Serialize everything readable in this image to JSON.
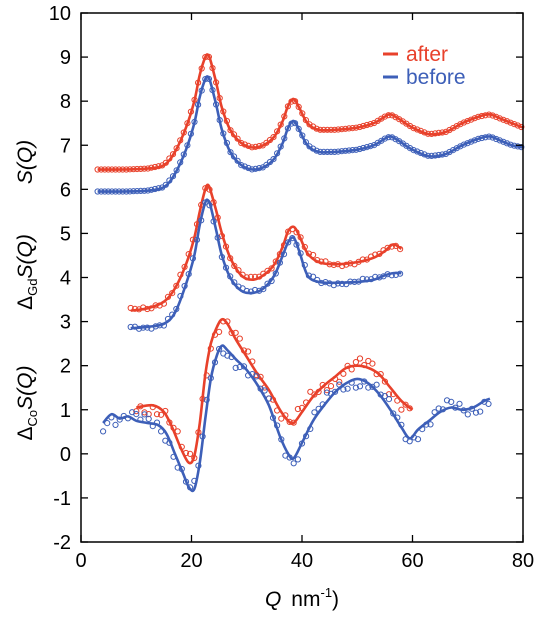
{
  "colors": {
    "after": "#e8412b",
    "before": "#3d5fb8",
    "axis": "#000000"
  },
  "chart_data": {
    "type": "line",
    "xlabel": {
      "var": "Q",
      "unit": "nm",
      "exp": "-1"
    },
    "ylabels": [
      {
        "pre": "",
        "sub": "",
        "var": "S(Q)"
      },
      {
        "pre": "Δ",
        "sub": "Gd",
        "var": "S(Q)"
      },
      {
        "pre": "Δ",
        "sub": "Co",
        "var": "S(Q)"
      }
    ],
    "xlim": [
      0,
      80
    ],
    "ylim": [
      -2,
      10
    ],
    "xticks": [
      0,
      20,
      40,
      60,
      80
    ],
    "yticks": [
      -2,
      -1,
      0,
      1,
      2,
      3,
      4,
      5,
      6,
      7,
      8,
      9,
      10
    ],
    "legend": {
      "position": "top-right",
      "entries": [
        "after",
        "before"
      ]
    },
    "grid": false,
    "series": [
      {
        "name": "after",
        "panel": "S(Q)",
        "x": [
          3,
          8,
          12,
          15,
          17,
          19,
          20.5,
          21.5,
          22.5,
          23,
          23.5,
          24.5,
          25.5,
          27,
          29,
          31,
          33,
          35,
          36.5,
          37.5,
          38.5,
          39.5,
          41,
          43,
          46,
          50,
          53,
          55,
          56,
          57.5,
          60,
          63,
          66,
          69,
          72,
          74,
          76,
          78,
          80
        ],
        "y": [
          6.45,
          6.45,
          6.47,
          6.55,
          6.85,
          7.4,
          8.0,
          8.6,
          9.0,
          9.05,
          8.9,
          8.4,
          7.85,
          7.35,
          7.05,
          6.95,
          7.0,
          7.2,
          7.55,
          7.9,
          8.05,
          7.85,
          7.5,
          7.35,
          7.35,
          7.4,
          7.5,
          7.65,
          7.7,
          7.6,
          7.4,
          7.25,
          7.3,
          7.5,
          7.65,
          7.7,
          7.6,
          7.5,
          7.4
        ]
      },
      {
        "name": "before",
        "panel": "S(Q)",
        "x": [
          3,
          8,
          12,
          15,
          17,
          19,
          20.5,
          21.5,
          22.5,
          23,
          23.5,
          24.5,
          25.5,
          27,
          29,
          31,
          33,
          35,
          36.5,
          37.5,
          38.5,
          39.5,
          41,
          43,
          46,
          50,
          53,
          55,
          56,
          57.5,
          60,
          63,
          66,
          69,
          72,
          74,
          76,
          78,
          80
        ],
        "y": [
          5.95,
          5.95,
          5.97,
          6.05,
          6.35,
          6.9,
          7.5,
          8.1,
          8.5,
          8.55,
          8.4,
          7.9,
          7.35,
          6.85,
          6.55,
          6.45,
          6.5,
          6.7,
          7.05,
          7.4,
          7.55,
          7.35,
          7.0,
          6.85,
          6.85,
          6.9,
          7.0,
          7.15,
          7.2,
          7.1,
          6.9,
          6.75,
          6.8,
          7.0,
          7.15,
          7.2,
          7.1,
          7.0,
          6.95
        ]
      },
      {
        "name": "after",
        "panel": "ΔGdS(Q)",
        "x": [
          9,
          12,
          15,
          17,
          19,
          20.5,
          21.5,
          22.5,
          23,
          23.5,
          24.5,
          25.5,
          27,
          29,
          31,
          33,
          35,
          36.5,
          37.5,
          38.5,
          39.5,
          41,
          43,
          46,
          50,
          53,
          55,
          56.5,
          58
        ],
        "y": [
          3.25,
          3.3,
          3.45,
          3.75,
          4.3,
          4.9,
          5.5,
          6.0,
          6.1,
          5.95,
          5.5,
          5.0,
          4.45,
          4.05,
          3.95,
          4.05,
          4.3,
          4.7,
          5.05,
          5.15,
          4.95,
          4.55,
          4.35,
          4.3,
          4.35,
          4.45,
          4.6,
          4.75,
          4.65
        ]
      },
      {
        "name": "before",
        "panel": "ΔGdS(Q)",
        "x": [
          9,
          12,
          15,
          17,
          19,
          20.5,
          21.5,
          22.5,
          23,
          23.5,
          24.5,
          25.5,
          27,
          29,
          31,
          33,
          35,
          36.5,
          37.5,
          38.5,
          39.5,
          41,
          43,
          46,
          50,
          53,
          55,
          56.5,
          58
        ],
        "y": [
          2.85,
          2.88,
          2.95,
          3.2,
          3.85,
          4.5,
          5.2,
          5.7,
          5.75,
          5.6,
          5.05,
          4.5,
          4.0,
          3.7,
          3.65,
          3.75,
          4.05,
          4.5,
          4.8,
          4.9,
          4.6,
          4.05,
          3.9,
          3.88,
          3.9,
          3.95,
          4.05,
          4.1,
          4.1
        ]
      },
      {
        "name": "after",
        "panel": "ΔCoS(Q)",
        "x": [
          10,
          13,
          15,
          16.5,
          18,
          19.5,
          20.5,
          21.5,
          22.5,
          23.5,
          24.5,
          25.5,
          26.5,
          28,
          30,
          32,
          34,
          36,
          37.5,
          38.5,
          40,
          42,
          44,
          46,
          48,
          50,
          52,
          54,
          56,
          58,
          60
        ],
        "y": [
          1.05,
          1.1,
          0.95,
          0.6,
          0.15,
          -0.2,
          -0.05,
          0.7,
          1.8,
          2.5,
          2.85,
          3.05,
          2.95,
          2.6,
          2.2,
          1.8,
          1.45,
          1.0,
          0.75,
          0.7,
          0.95,
          1.3,
          1.55,
          1.75,
          1.95,
          2.0,
          1.95,
          1.8,
          1.5,
          1.2,
          1.0
        ]
      },
      {
        "name": "before",
        "panel": "ΔCoS(Q)",
        "x": [
          4,
          5.5,
          7,
          8.5,
          10,
          12,
          14,
          15.5,
          17,
          18.5,
          19.5,
          20.5,
          21.5,
          22.5,
          23.5,
          24.5,
          25.5,
          26.5,
          28,
          30,
          32,
          34,
          36,
          37.5,
          38.5,
          40,
          42,
          44,
          46,
          48,
          50,
          52,
          54,
          56,
          58,
          59.5,
          61,
          63,
          65,
          67,
          69,
          71,
          73,
          74
        ],
        "y": [
          0.7,
          0.9,
          0.8,
          0.85,
          0.75,
          0.7,
          0.65,
          0.45,
          0.0,
          -0.45,
          -0.75,
          -0.8,
          -0.2,
          0.8,
          1.7,
          2.2,
          2.45,
          2.35,
          2.15,
          1.9,
          1.55,
          1.1,
          0.4,
          0.0,
          -0.1,
          0.25,
          0.75,
          1.1,
          1.4,
          1.6,
          1.7,
          1.6,
          1.35,
          1.0,
          0.6,
          0.35,
          0.55,
          0.75,
          0.95,
          1.05,
          1.0,
          1.05,
          1.2,
          1.25
        ]
      }
    ]
  }
}
